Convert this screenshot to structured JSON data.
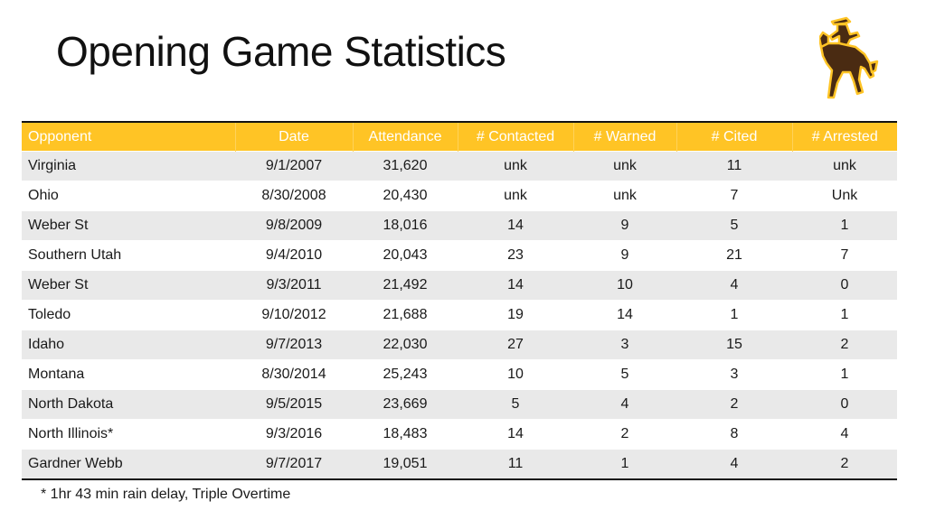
{
  "title": "Opening Game Statistics",
  "logo": {
    "icon": "bucking-horse-rider-icon",
    "colors": {
      "brown": "#4a2b12",
      "gold": "#FFC425"
    }
  },
  "colors": {
    "header_bg": "#FFC425",
    "header_text": "#ffffff",
    "row_alt": "#e9e9e9"
  },
  "table": {
    "headers": [
      "Opponent",
      "Date",
      "Attendance",
      "# Contacted",
      "# Warned",
      "# Cited",
      "# Arrested"
    ],
    "rows": [
      [
        "Virginia",
        "9/1/2007",
        "31,620",
        "unk",
        "unk",
        "11",
        "unk"
      ],
      [
        "Ohio",
        "8/30/2008",
        "20,430",
        "unk",
        "unk",
        "7",
        "Unk"
      ],
      [
        "Weber St",
        "9/8/2009",
        "18,016",
        "14",
        "9",
        "5",
        "1"
      ],
      [
        "Southern Utah",
        "9/4/2010",
        "20,043",
        "23",
        "9",
        "21",
        "7"
      ],
      [
        "Weber St",
        "9/3/2011",
        "21,492",
        "14",
        "10",
        "4",
        "0"
      ],
      [
        "Toledo",
        "9/10/2012",
        "21,688",
        "19",
        "14",
        "1",
        "1"
      ],
      [
        "Idaho",
        "9/7/2013",
        "22,030",
        "27",
        "3",
        "15",
        "2"
      ],
      [
        "Montana",
        "8/30/2014",
        "25,243",
        "10",
        "5",
        "3",
        "1"
      ],
      [
        "North Dakota",
        "9/5/2015",
        "23,669",
        "5",
        "4",
        "2",
        "0"
      ],
      [
        "North Illinois*",
        "9/3/2016",
        "18,483",
        "14",
        "2",
        "8",
        "4"
      ],
      [
        "Gardner Webb",
        "9/7/2017",
        "19,051",
        "11",
        "1",
        "4",
        "2"
      ]
    ]
  },
  "footnote": "* 1hr 43 min rain delay, Triple Overtime"
}
